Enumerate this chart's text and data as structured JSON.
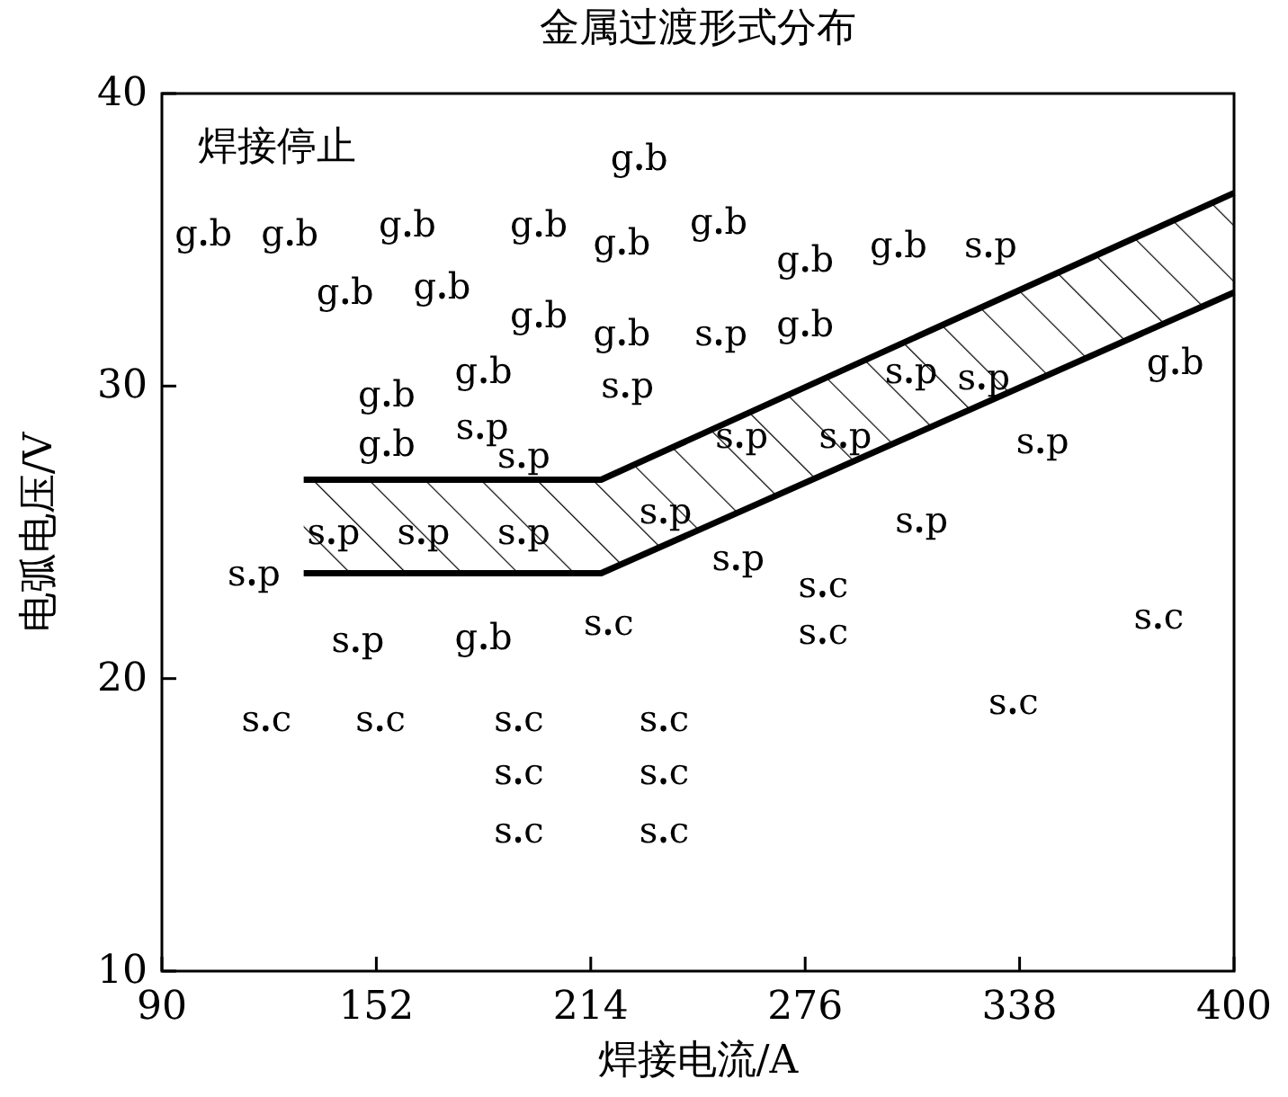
{
  "chart_data": {
    "type": "scatter",
    "title": "金属过渡形式分布",
    "xlabel": "焊接电流/A",
    "ylabel": "电弧电压/V",
    "xlim": [
      90,
      400
    ],
    "xticks": [
      90,
      152,
      214,
      276,
      338,
      400
    ],
    "ylim": [
      10,
      40
    ],
    "yticks": [
      10,
      20,
      30,
      40
    ],
    "annotations": [
      "焊接停止"
    ],
    "series": [
      {
        "name": "g.b",
        "color": "#000000",
        "marker": "circle",
        "x": [
          102,
          127,
          143,
          161,
          171,
          155,
          155,
          183,
          199,
          199,
          228,
          223,
          223,
          251,
          276,
          276,
          303,
          383,
          183
        ],
        "values": [
          34.9,
          34.9,
          32.9,
          35.2,
          33.1,
          29.4,
          27.7,
          30.2,
          35.2,
          32.1,
          37.5,
          34.6,
          31.5,
          35.3,
          34.0,
          31.8,
          34.5,
          30.5,
          21.1
        ]
      },
      {
        "name": "s.p",
        "color": "#000000",
        "marker": "circle",
        "x": [
          116,
          139,
          165,
          194,
          194,
          182,
          224,
          251,
          257,
          287,
          235,
          256,
          306,
          327,
          344,
          309,
          329,
          146
        ],
        "values": [
          23.3,
          24.7,
          24.7,
          24.7,
          27.3,
          28.3,
          29.7,
          31.5,
          28.0,
          28.0,
          25.4,
          23.8,
          30.2,
          30.0,
          27.8,
          25.1,
          34.5,
          21.0
        ]
      },
      {
        "name": "s.c",
        "color": "#000000",
        "marker": "circle",
        "x": [
          120,
          153,
          193,
          193,
          193,
          235,
          235,
          235,
          219,
          281,
          281,
          336,
          378
        ],
        "values": [
          18.3,
          18.3,
          18.3,
          16.5,
          14.5,
          18.3,
          16.5,
          14.5,
          21.6,
          22.9,
          21.3,
          18.9,
          21.8
        ]
      },
      {
        "type": "line",
        "color": "#000000",
        "x": [
          131,
          217,
          400
        ],
        "values": [
          26.8,
          26.8,
          36.6
        ]
      },
      {
        "type": "line",
        "color": "#000000",
        "x": [
          131,
          217,
          400
        ],
        "values": [
          23.6,
          23.6,
          33.2
        ]
      }
    ]
  }
}
